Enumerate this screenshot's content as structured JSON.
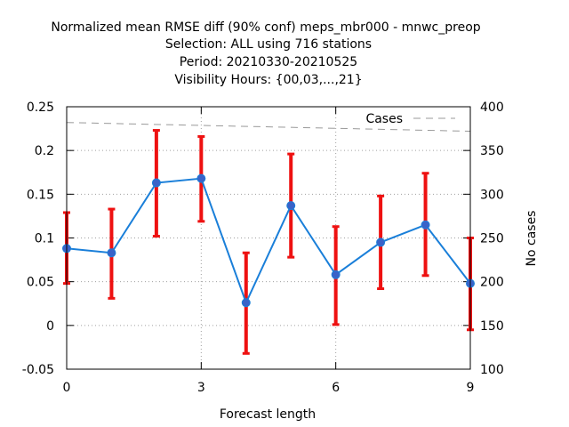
{
  "chart_data": {
    "type": "line",
    "title_lines": [
      "Normalized mean RMSE diff (90% conf) meps_mbr000 - mnwc_preop",
      "Selection: ALL using   716 stations",
      "Period: 20210330-20210525",
      "Visibility   Hours: {00,03,...,21}"
    ],
    "xlabel": "Forecast length",
    "ylabel": "",
    "y2label": "No cases",
    "xlim": [
      0,
      9
    ],
    "ylim": [
      -0.05,
      0.25
    ],
    "y2lim": [
      100,
      400
    ],
    "xticks": [
      "0",
      "3",
      "6",
      "9"
    ],
    "yticks": [
      "-0.05",
      "0",
      "0.05",
      "0.1",
      "0.15",
      "0.2",
      "0.25"
    ],
    "y2ticks": [
      "100",
      "150",
      "200",
      "250",
      "300",
      "350",
      "400"
    ],
    "grid": true,
    "legend_position": "top-right",
    "series": [
      {
        "kind": "line-with-errorbars",
        "x": [
          0,
          1,
          2,
          3,
          4,
          5,
          6,
          7,
          8,
          9
        ],
        "y": [
          0.088,
          0.083,
          0.163,
          0.168,
          0.026,
          0.137,
          0.058,
          0.095,
          0.115,
          0.048
        ],
        "err_low": [
          0.048,
          0.031,
          0.102,
          0.119,
          -0.032,
          0.078,
          0.001,
          0.042,
          0.057,
          -0.005
        ],
        "err_high": [
          0.129,
          0.133,
          0.223,
          0.216,
          0.083,
          0.196,
          0.113,
          0.148,
          0.174,
          0.1
        ],
        "line_color": "#1a7fd9",
        "marker_color": "#3a62c8",
        "errorbar_color": "#ee1111"
      },
      {
        "name": "Cases",
        "kind": "dashed-line",
        "axis": "right",
        "x": [
          0,
          9
        ],
        "y": [
          382,
          372
        ],
        "color": "#999999"
      }
    ]
  }
}
